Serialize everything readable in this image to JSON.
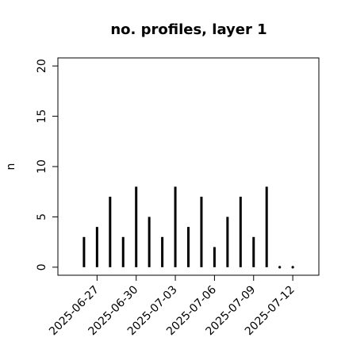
{
  "chart_data": {
    "type": "bar",
    "title": "no. profiles, layer 1",
    "y_label": "n",
    "x": [
      "2025-06-26",
      "2025-06-27",
      "2025-06-28",
      "2025-06-29",
      "2025-06-30",
      "2025-07-01",
      "2025-07-02",
      "2025-07-03",
      "2025-07-04",
      "2025-07-05",
      "2025-07-06",
      "2025-07-07",
      "2025-07-08",
      "2025-07-09",
      "2025-07-10",
      "2025-07-11",
      "2025-07-12"
    ],
    "values": [
      3,
      4,
      7,
      3,
      8,
      5,
      3,
      8,
      4,
      7,
      2,
      5,
      7,
      3,
      8,
      0,
      0
    ],
    "color": "#000000",
    "xlim": [
      "2025-06-24",
      "2025-07-14"
    ],
    "xticks": [
      "2025-06-27",
      "2025-06-30",
      "2025-07-03",
      "2025-07-06",
      "2025-07-09",
      "2025-07-12"
    ],
    "xtick_colors": [
      "#000000",
      "#000000",
      "#228b22",
      "#000000",
      "#000000",
      "#000000"
    ],
    "ylim": [
      -0.8,
      20.8
    ],
    "yticks": [
      0,
      5,
      10,
      15,
      20
    ]
  }
}
